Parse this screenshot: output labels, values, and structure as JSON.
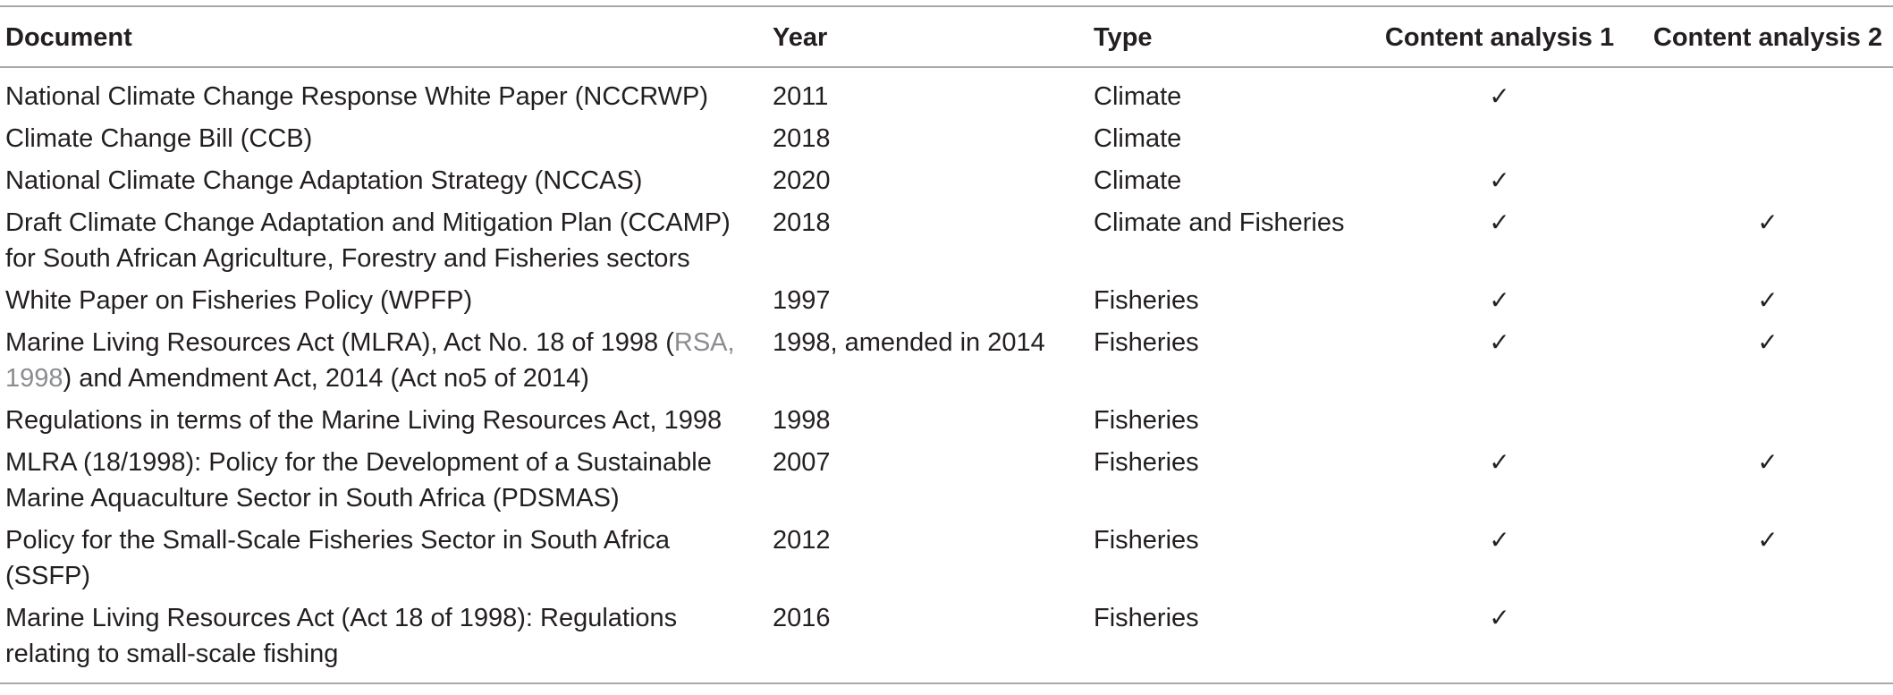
{
  "table": {
    "headers": {
      "document": "Document",
      "year": "Year",
      "type": "Type",
      "ca1": "Content analysis 1",
      "ca2": "Content analysis 2"
    },
    "check_mark": "✓",
    "rows": [
      {
        "doc_line1": "National Climate Change Response White Paper (NCCRWP)",
        "year": "2011",
        "type": "Climate",
        "ca1": "✓",
        "ca2": ""
      },
      {
        "doc_line1": "Climate Change Bill (CCB)",
        "year": "2018",
        "type": "Climate",
        "ca1": "",
        "ca2": ""
      },
      {
        "doc_line1": "National Climate Change Adaptation Strategy (NCCAS)",
        "year": "2020",
        "type": "Climate",
        "ca1": "✓",
        "ca2": ""
      },
      {
        "doc_line1": "Draft Climate Change Adaptation and Mitigation Plan (CCAMP)",
        "doc_line2": "for South African Agriculture, Forestry and Fisheries sectors",
        "year": "2018",
        "type": "Climate and Fisheries",
        "ca1": "✓",
        "ca2": "✓"
      },
      {
        "doc_line1": "White Paper on Fisheries Policy (WPFP)",
        "year": "1997",
        "type": "Fisheries",
        "ca1": "✓",
        "ca2": "✓"
      },
      {
        "doc_line1_pre": "Marine Living Resources Act (MLRA), Act No. 18 of 1998 (",
        "doc_ref_a": "RSA,",
        "doc_ref_b": "1998",
        "doc_line2_post": ") and Amendment Act, 2014 (Act no5 of 2014)",
        "year": "1998, amended in 2014",
        "type": "Fisheries",
        "ca1": "✓",
        "ca2": "✓"
      },
      {
        "doc_line1": "Regulations in terms of the Marine Living Resources Act, 1998",
        "year": "1998",
        "type": "Fisheries",
        "ca1": "",
        "ca2": ""
      },
      {
        "doc_line1": "MLRA (18/1998): Policy for the Development of a Sustainable",
        "doc_line2": "Marine Aquaculture Sector in South Africa (PDSMAS)",
        "year": "2007",
        "type": "Fisheries",
        "ca1": "✓",
        "ca2": "✓"
      },
      {
        "doc_line1": "Policy for the Small-Scale Fisheries Sector in South Africa",
        "doc_line2": "(SSFP)",
        "year": "2012",
        "type": "Fisheries",
        "ca1": "✓",
        "ca2": "✓"
      },
      {
        "doc_line1": "Marine Living Resources Act (Act 18 of 1998): Regulations",
        "doc_line2": "relating to small-scale fishing",
        "year": "2016",
        "type": "Fisheries",
        "ca1": "✓",
        "ca2": ""
      }
    ]
  }
}
